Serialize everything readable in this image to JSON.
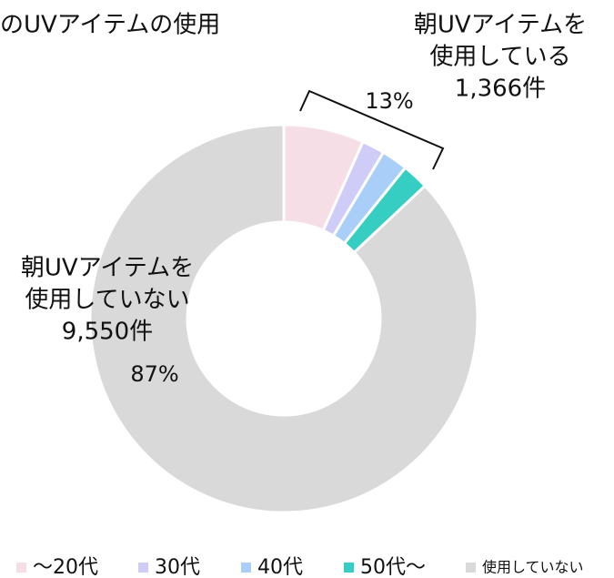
{
  "chart_data": {
    "type": "donut",
    "title": "のUVアイテムの使用",
    "categories": [
      "〜20代",
      "30代",
      "40代",
      "50代〜",
      "使用していない"
    ],
    "values": [
      6.7,
      1.9,
      2.2,
      2.2,
      87
    ],
    "value_labels": [
      null,
      null,
      null,
      null,
      "87%"
    ],
    "colors": [
      "#f6dee7",
      "#cfcdf8",
      "#a9cff8",
      "#36cdc3",
      "#d9d9d9"
    ],
    "annotations": [
      {
        "lines": [
          "朝UVアイテムを",
          "使用している",
          "1,366件"
        ]
      },
      {
        "lines": [
          "朝UVアイテムを",
          "使用していない",
          "9,550件"
        ]
      },
      {
        "text": "13%"
      }
    ],
    "legend": "bottom"
  }
}
